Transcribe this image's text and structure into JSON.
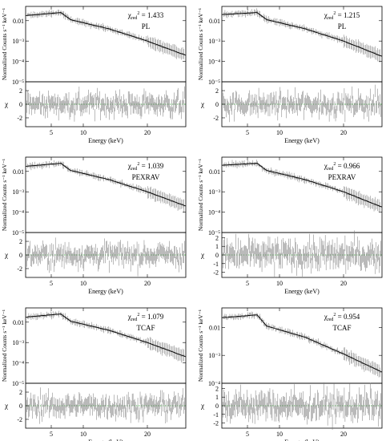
{
  "labels": {
    "counts_ylabel": "Normalized Counts s⁻¹ keV⁻¹",
    "resid_ylabel": "χ",
    "xlabel": "Energy (keV)"
  },
  "chart_data": [
    {
      "type": "scatter",
      "id": "p1",
      "model": "PL",
      "chi2": "1.433",
      "xlim": [
        1,
        26
      ],
      "xticks": [
        5,
        10,
        20
      ],
      "ylim_log": [
        -5,
        -1.3
      ],
      "yticks_log": [
        {
          "e": -2,
          "label": "0.01"
        },
        {
          "e": -3,
          "label": "10⁻³"
        },
        {
          "e": -4,
          "label": "10⁻⁴"
        },
        {
          "e": -5,
          "label": "10⁻⁵"
        }
      ],
      "rlim": [
        -3.3,
        3.3
      ],
      "rticks": [
        2,
        0,
        -2
      ],
      "model_points": [
        [
          1,
          -1.75
        ],
        [
          6.5,
          -1.6
        ],
        [
          8,
          -1.95
        ],
        [
          14,
          -2.4
        ],
        [
          20,
          -3.0
        ],
        [
          26,
          -3.7
        ]
      ]
    },
    {
      "type": "scatter",
      "id": "p2",
      "model": "PL",
      "chi2": "1.215",
      "xlim": [
        1,
        26
      ],
      "xticks": [
        5,
        10,
        20
      ],
      "ylim_log": [
        -5,
        -1.3
      ],
      "yticks_log": [
        {
          "e": -2,
          "label": "0.01"
        },
        {
          "e": -3,
          "label": "10⁻³"
        },
        {
          "e": -4,
          "label": "10⁻⁴"
        },
        {
          "e": -5,
          "label": "10⁻⁵"
        }
      ],
      "rlim": [
        -3.3,
        3.3
      ],
      "rticks": [
        2,
        0,
        -2
      ],
      "model_points": [
        [
          1,
          -1.7
        ],
        [
          6.5,
          -1.6
        ],
        [
          8,
          -1.95
        ],
        [
          14,
          -2.4
        ],
        [
          20,
          -3.0
        ],
        [
          26,
          -3.75
        ]
      ]
    },
    {
      "type": "scatter",
      "id": "p3",
      "model": "PEXRAV",
      "chi2": "1.039",
      "xlim": [
        1,
        26
      ],
      "xticks": [
        5,
        10,
        20
      ],
      "ylim_log": [
        -5,
        -1.3
      ],
      "yticks_log": [
        {
          "e": -2,
          "label": "0.01"
        },
        {
          "e": -3,
          "label": "10⁻³"
        },
        {
          "e": -4,
          "label": "10⁻⁴"
        },
        {
          "e": -5,
          "label": "10⁻⁵"
        }
      ],
      "rlim": [
        -3.3,
        3.3
      ],
      "rticks": [
        2,
        0,
        -2
      ],
      "model_points": [
        [
          1,
          -1.75
        ],
        [
          6.5,
          -1.6
        ],
        [
          8,
          -1.95
        ],
        [
          14,
          -2.4
        ],
        [
          20,
          -3.0
        ],
        [
          26,
          -3.7
        ]
      ]
    },
    {
      "type": "scatter",
      "id": "p4",
      "model": "PEXRAV",
      "chi2": "0.966",
      "xlim": [
        1,
        26
      ],
      "xticks": [
        5,
        10,
        20
      ],
      "ylim_log": [
        -5,
        -1.3
      ],
      "yticks_log": [
        {
          "e": -2,
          "label": "0.01"
        },
        {
          "e": -3,
          "label": "10⁻³"
        },
        {
          "e": -4,
          "label": "10⁻⁴"
        },
        {
          "e": -5,
          "label": "10⁻⁵"
        }
      ],
      "rlim": [
        -2.6,
        2.6
      ],
      "rticks": [
        2,
        1,
        0,
        -1,
        -2
      ],
      "model_points": [
        [
          1,
          -1.7
        ],
        [
          6.5,
          -1.6
        ],
        [
          8,
          -1.95
        ],
        [
          14,
          -2.4
        ],
        [
          20,
          -3.0
        ],
        [
          26,
          -3.75
        ]
      ]
    },
    {
      "type": "scatter",
      "id": "p5",
      "model": "TCAF",
      "chi2": "1.079",
      "xlim": [
        1,
        26
      ],
      "xticks": [
        5,
        10,
        20
      ],
      "ylim_log": [
        -5,
        -1.3
      ],
      "yticks_log": [
        {
          "e": -2,
          "label": "0.01"
        },
        {
          "e": -3,
          "label": "10⁻³"
        },
        {
          "e": -4,
          "label": "10⁻⁴"
        },
        {
          "e": -5,
          "label": "10⁻⁵"
        }
      ],
      "rlim": [
        -3.3,
        3.3
      ],
      "rticks": [
        2,
        0,
        -2
      ],
      "model_points": [
        [
          1,
          -1.75
        ],
        [
          6.5,
          -1.6
        ],
        [
          8,
          -1.95
        ],
        [
          14,
          -2.4
        ],
        [
          20,
          -3.0
        ],
        [
          26,
          -3.7
        ]
      ]
    },
    {
      "type": "scatter",
      "id": "p6",
      "model": "TCAF",
      "chi2": "0.954",
      "xlim": [
        1,
        26
      ],
      "xticks": [
        5,
        10,
        20
      ],
      "ylim_log": [
        -4,
        -1.3
      ],
      "yticks_log": [
        {
          "e": -2,
          "label": "0.01"
        },
        {
          "e": -3,
          "label": "10⁻³"
        },
        {
          "e": -4,
          "label": "10⁻⁴"
        }
      ],
      "rlim": [
        -2.6,
        2.6
      ],
      "rticks": [
        2,
        1,
        0,
        -1,
        -2
      ],
      "model_points": [
        [
          1,
          -1.65
        ],
        [
          6.5,
          -1.55
        ],
        [
          8,
          -1.95
        ],
        [
          14,
          -2.35
        ],
        [
          20,
          -2.95
        ],
        [
          26,
          -3.6
        ]
      ]
    }
  ]
}
